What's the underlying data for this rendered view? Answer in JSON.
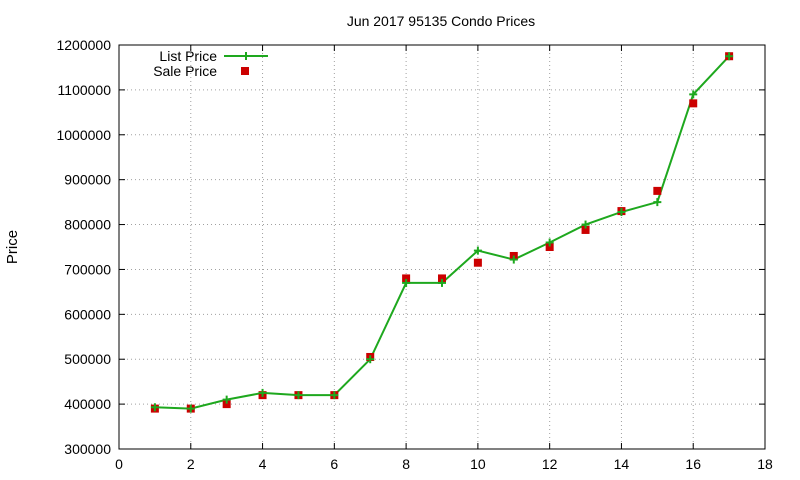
{
  "chart_data": {
    "type": "line",
    "title": "Jun 2017 95135 Condo Prices",
    "xlabel": "",
    "ylabel": "Price",
    "xlim": [
      0,
      18
    ],
    "ylim": [
      300000,
      1200000
    ],
    "xticks": [
      0,
      2,
      4,
      6,
      8,
      10,
      12,
      14,
      16,
      18
    ],
    "yticks": [
      300000,
      400000,
      500000,
      600000,
      700000,
      800000,
      900000,
      1000000,
      1100000,
      1200000
    ],
    "grid": true,
    "legend_position": "top-left",
    "series": [
      {
        "name": "List Price",
        "style": "line-with-plus-markers",
        "color": "#1ea81e",
        "x": [
          1,
          2,
          3,
          4,
          5,
          6,
          7,
          8,
          9,
          10,
          11,
          12,
          13,
          14,
          15,
          16,
          17
        ],
        "values": [
          393000,
          390000,
          410000,
          425000,
          420000,
          420000,
          500000,
          670000,
          670000,
          742000,
          722000,
          760000,
          800000,
          828000,
          850000,
          1090000,
          1175000
        ]
      },
      {
        "name": "Sale Price",
        "style": "square-markers",
        "color": "#cc0000",
        "x": [
          1,
          2,
          3,
          4,
          5,
          6,
          7,
          8,
          9,
          10,
          11,
          12,
          13,
          14,
          15,
          16,
          17
        ],
        "values": [
          390000,
          390000,
          400000,
          420000,
          420000,
          420000,
          505000,
          680000,
          680000,
          715000,
          730000,
          750000,
          788000,
          830000,
          875000,
          1070000,
          1175000
        ]
      }
    ]
  }
}
